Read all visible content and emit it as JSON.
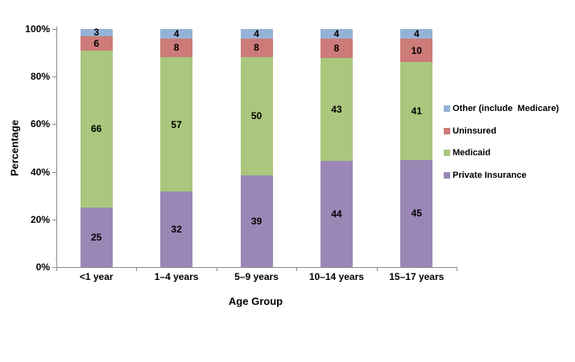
{
  "chart_data": {
    "type": "bar",
    "stacked": true,
    "percent_stacked": true,
    "title": "",
    "xlabel": "Age Group",
    "ylabel": "Percentage",
    "ylim": [
      0,
      100
    ],
    "grid": false,
    "legend_position": "right",
    "categories": [
      "<1 year",
      "1–4 years",
      "5–9 years",
      "10–14 years",
      "15–17 years"
    ],
    "series": [
      {
        "name": "Private Insurance",
        "color": "#9b87b6",
        "values": [
          25,
          32,
          39,
          44,
          45
        ]
      },
      {
        "name": "Medicaid",
        "color": "#aac77d",
        "values": [
          66,
          57,
          50,
          43,
          41
        ]
      },
      {
        "name": "Uninsured",
        "color": "#cc7b78",
        "values": [
          6,
          8,
          8,
          8,
          10
        ]
      },
      {
        "name": "Other (include  Medicare)",
        "color": "#95b3d7",
        "values": [
          3,
          4,
          4,
          4,
          4
        ]
      }
    ],
    "y_ticks": [
      {
        "label": "0%",
        "value": 0
      },
      {
        "label": "20%",
        "value": 20
      },
      {
        "label": "40%",
        "value": 40
      },
      {
        "label": "60%",
        "value": 60
      },
      {
        "label": "80%",
        "value": 80
      },
      {
        "label": "100%",
        "value": 100
      }
    ],
    "colors": {
      "axis_line": "#8c8c8c",
      "text": "#000000",
      "background": "#ffffff"
    }
  }
}
